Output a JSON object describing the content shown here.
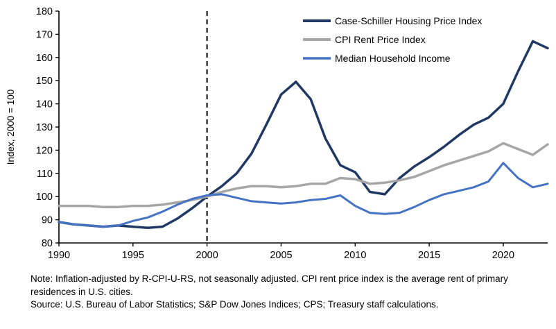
{
  "chart_data": {
    "type": "line",
    "title": "",
    "xlabel": "",
    "ylabel": "Index, 2000 = 100",
    "ylim": [
      80,
      180
    ],
    "ytick_step": 10,
    "xlim": [
      1990,
      2023
    ],
    "xticks": [
      1990,
      1995,
      2000,
      2005,
      2010,
      2015,
      2020
    ],
    "reference_line_x": 2000,
    "grid": false,
    "legend_position": "top-right-inside",
    "x": [
      1990,
      1991,
      1992,
      1993,
      1994,
      1995,
      1996,
      1997,
      1998,
      1999,
      2000,
      2001,
      2002,
      2003,
      2004,
      2005,
      2006,
      2007,
      2008,
      2009,
      2010,
      2011,
      2012,
      2013,
      2014,
      2015,
      2016,
      2017,
      2018,
      2019,
      2020,
      2021,
      2022,
      2023
    ],
    "series": [
      {
        "name": "Case-Schiller Housing Price Index",
        "color": "#1f3864",
        "stroke_width": 3.5,
        "values": [
          89,
          88,
          87.5,
          87,
          87.5,
          87,
          86.5,
          87,
          90.5,
          95,
          100,
          104.5,
          110,
          118.5,
          131,
          144,
          149.5,
          142,
          125,
          113.5,
          110.5,
          102,
          101,
          108,
          113,
          117,
          121.5,
          126.5,
          131,
          134,
          140,
          154,
          167,
          164
        ]
      },
      {
        "name": "CPI Rent Price Index",
        "color": "#a6a6a6",
        "stroke_width": 3.5,
        "values": [
          96,
          96,
          96,
          95.5,
          95.5,
          96,
          96,
          96.5,
          97.5,
          98.5,
          100,
          102,
          103.5,
          104.5,
          104.5,
          104,
          104.5,
          105.5,
          105.5,
          108,
          107.5,
          105.5,
          106,
          107,
          108.5,
          111,
          113.5,
          115.5,
          117.5,
          119.5,
          123,
          120.5,
          118,
          122.5
        ]
      },
      {
        "name": "Median Household Income",
        "color": "#4472c4",
        "stroke_width": 3,
        "values": [
          89,
          88,
          87.5,
          87,
          87.5,
          89.5,
          91,
          93.5,
          96.5,
          99,
          100.5,
          101,
          99.5,
          98,
          97.5,
          97,
          97.5,
          98.5,
          99,
          100.5,
          96,
          93,
          92.5,
          93,
          95.5,
          98.5,
          101,
          102.5,
          104,
          106.5,
          114.5,
          108,
          104,
          105.5
        ]
      }
    ]
  },
  "notes": {
    "note": "Note: Inflation-adjusted by R-CPI-U-RS, not seasonally adjusted. CPI rent price index is the average rent of primary residences in U.S. cities.",
    "source": "Source: U.S. Bureau of Labor Statistics; S&P Dow Jones Indices; CPS; Treasury staff calculations."
  }
}
